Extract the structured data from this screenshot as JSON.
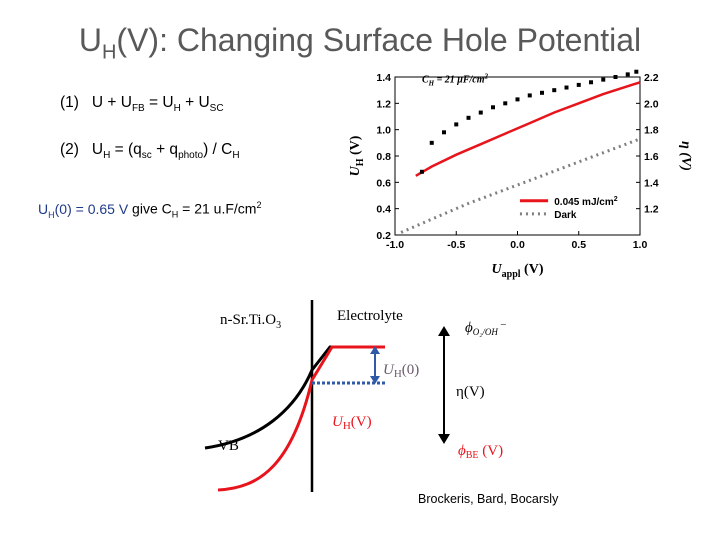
{
  "title": {
    "prefix": "U",
    "sub": "H",
    "rest": "(V): Changing Surface Hole Potential"
  },
  "equations": {
    "eq1": {
      "label": "(1)",
      "text": "U + U",
      "sub1": "FB",
      "mid": " = U",
      "sub2": "H",
      "mid2": " + U",
      "sub3": "SC"
    },
    "eq2": {
      "label": "(2)",
      "text": "U",
      "sub1": "H",
      "mid": " = (q",
      "sub2": "sc",
      "mid2": " + q",
      "sub3": "photo",
      "mid3": ") / C",
      "sub4": "H"
    }
  },
  "note": {
    "u": "U",
    "usub": "H",
    "part1": "(0) = 0.65 V",
    "part2": " give C",
    "csub": "H",
    "part3": " = 21 u.F/cm",
    "sup": "2"
  },
  "chart_data": {
    "type": "line",
    "xlabel": "U",
    "xlabel_sub": "appl",
    "xlabel_unit": " (V)",
    "ylabel": "U",
    "ylabel_sub": "H",
    "ylabel_unit": " (V)",
    "y2label": "η (V)",
    "xlim": [
      -1.0,
      1.0
    ],
    "ylim": [
      0.2,
      1.4
    ],
    "y2lim": [
      1.0,
      2.2
    ],
    "x_ticks": [
      "-1.0",
      "-0.5",
      "0.0",
      "0.5",
      "1.0"
    ],
    "y_ticks": [
      "0.2",
      "0.4",
      "0.6",
      "0.8",
      "1.0",
      "1.2",
      "1.4"
    ],
    "y2_ticks": [
      "1.2",
      "1.4",
      "1.6",
      "1.8",
      "2.0",
      "2.2"
    ],
    "annotation": {
      "c": "C",
      "csub": "H",
      "rest": " = 21 μF/cm",
      "sup": "2"
    },
    "legend_position": "bottom-right",
    "series": [
      {
        "name": "0.045 mJ/cm",
        "name_sup": "2",
        "color": "#e8141c",
        "style": "solid",
        "x": [
          -0.83,
          -0.7,
          -0.5,
          -0.3,
          -0.1,
          0.1,
          0.3,
          0.5,
          0.7,
          0.9,
          1.0
        ],
        "y": [
          0.65,
          0.72,
          0.81,
          0.89,
          0.97,
          1.05,
          1.13,
          1.2,
          1.27,
          1.33,
          1.36
        ]
      },
      {
        "name": "Dark",
        "color": "#7f7f7f",
        "style": "dotted",
        "x": [
          -0.95,
          -0.8,
          -0.6,
          -0.4,
          -0.2,
          0.0,
          0.2,
          0.4,
          0.6,
          0.8,
          1.0
        ],
        "y": [
          0.22,
          0.28,
          0.36,
          0.44,
          0.51,
          0.58,
          0.65,
          0.72,
          0.79,
          0.86,
          0.93
        ]
      },
      {
        "name": "",
        "color": "#000000",
        "style": "markers",
        "x": [
          -0.78,
          -0.7,
          -0.6,
          -0.5,
          -0.4,
          -0.3,
          -0.2,
          -0.1,
          0.0,
          0.1,
          0.2,
          0.3,
          0.4,
          0.5,
          0.6,
          0.7,
          0.8,
          0.9,
          0.97
        ],
        "y": [
          0.68,
          0.9,
          0.98,
          1.04,
          1.09,
          1.13,
          1.17,
          1.2,
          1.23,
          1.26,
          1.28,
          1.3,
          1.32,
          1.34,
          1.36,
          1.38,
          1.4,
          1.42,
          1.44
        ]
      }
    ]
  },
  "band_diagram": {
    "label_sc": "n-Sr.Ti.O",
    "label_sc_sub": "3",
    "label_electrolyte": "Electrolyte",
    "label_uh0": "U",
    "label_uh0_sub": "H",
    "label_uh0_rest": "(0)",
    "label_uhv": "U",
    "label_uhv_sub": "H",
    "label_uhv_rest": "(V)",
    "label_eta": "η(V)",
    "label_vb": "VB",
    "label_phi_top": "ϕ",
    "label_phi_top_sub": "O₂/OH",
    "label_phi_top_sup": "–",
    "label_phi_be": "ϕ",
    "label_phi_be_sub": "BE",
    "label_phi_be_rest": " (V)",
    "colors": {
      "dark": "#000000",
      "light": "#e8141c",
      "blue": "#2e5aa8"
    }
  },
  "credit": "Brockeris, Bard, Bocarsly"
}
